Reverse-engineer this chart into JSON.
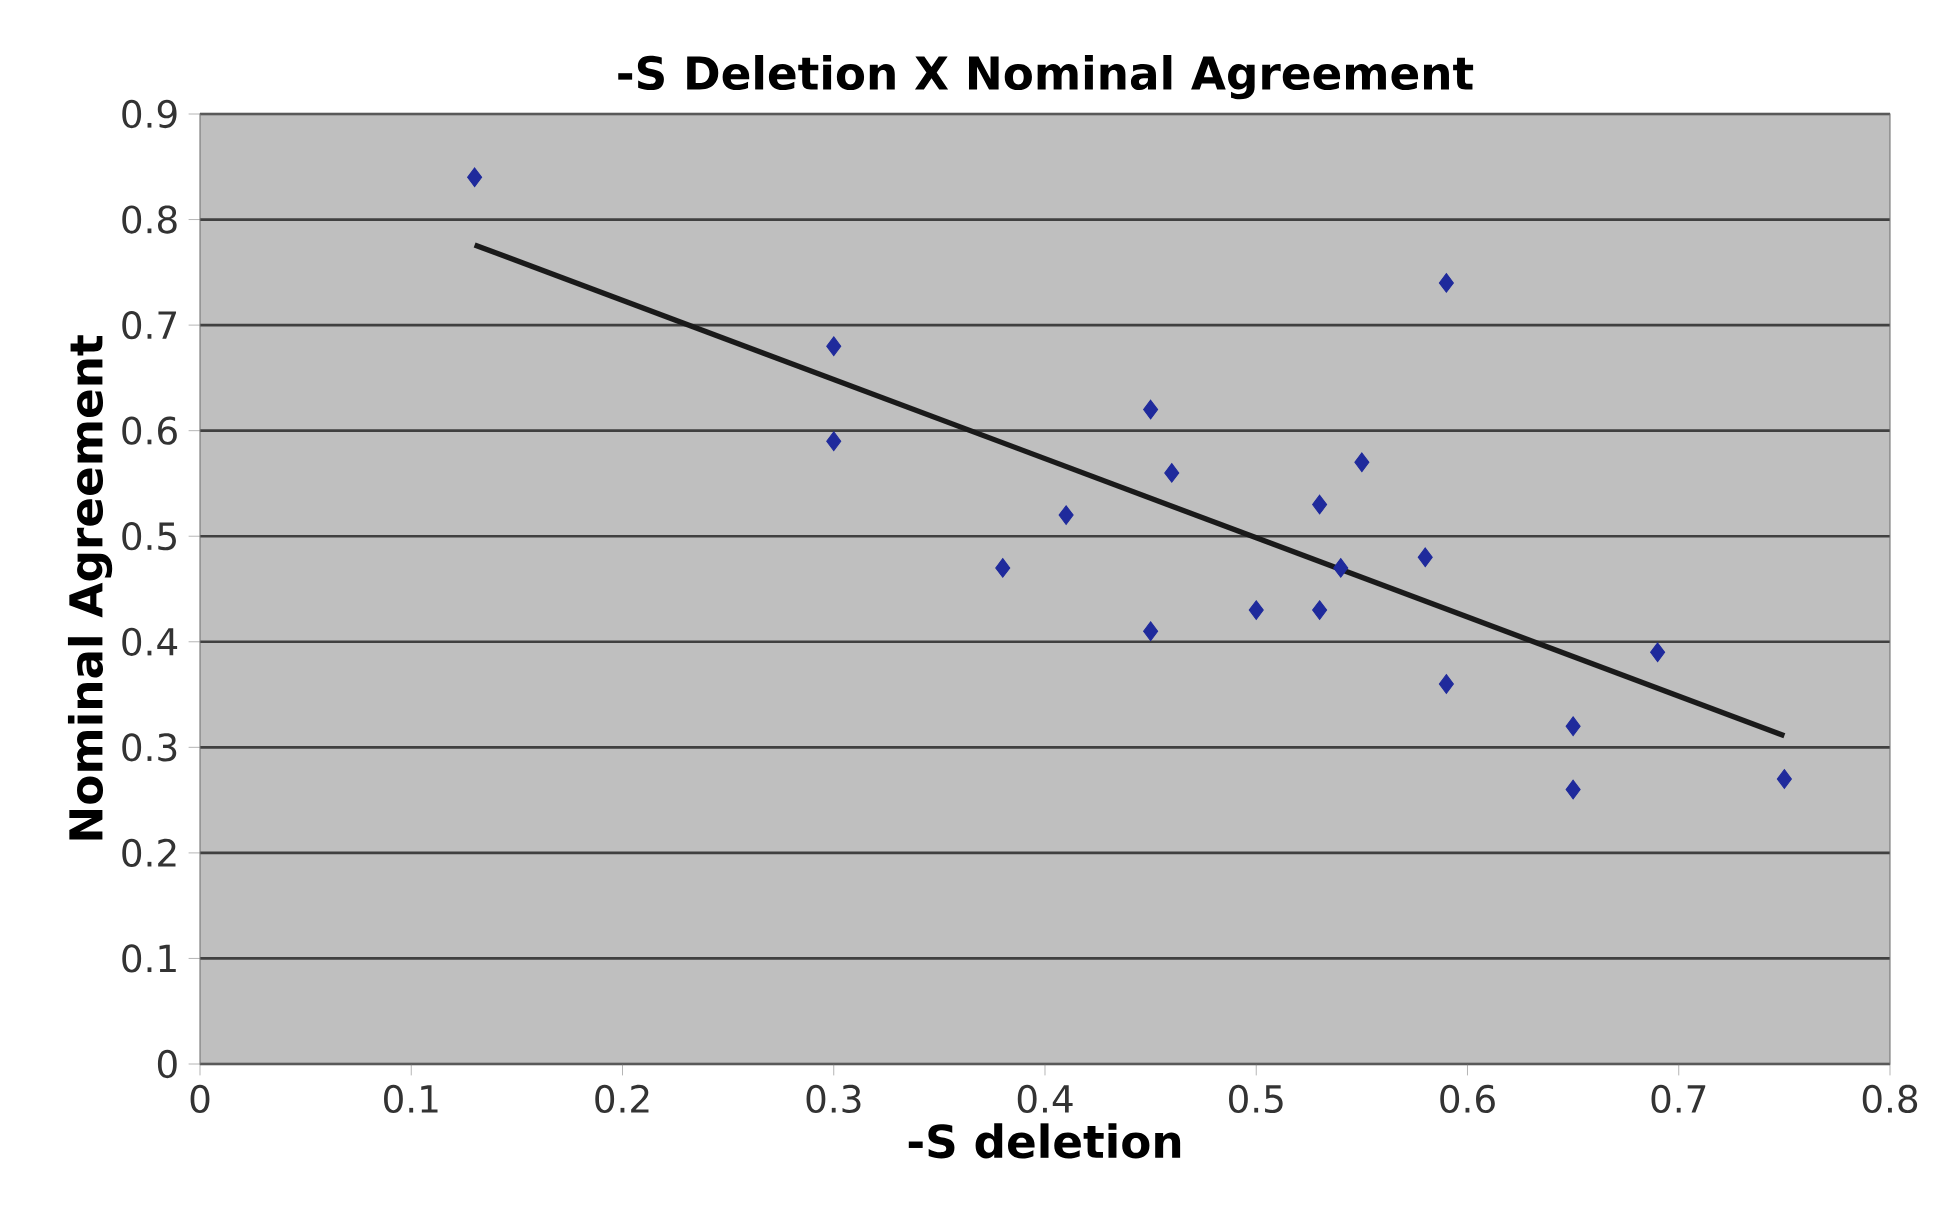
{
  "chart_data": {
    "type": "scatter",
    "title": "-S Deletion X Nominal Agreement",
    "xlabel": "-S deletion",
    "ylabel": "Nominal Agreement",
    "xlim": [
      0,
      0.8
    ],
    "xticks": [
      0,
      0.1,
      0.2,
      0.3,
      0.4,
      0.5,
      0.6,
      0.7,
      0.8
    ],
    "ylim": [
      0,
      0.9
    ],
    "yticks": [
      0,
      0.1,
      0.2,
      0.3,
      0.4,
      0.5,
      0.6,
      0.7,
      0.8,
      0.9
    ],
    "grid": "y",
    "series": [
      {
        "marker": "diamond",
        "color": "#1f2a9c",
        "x": [
          0.13,
          0.3,
          0.3,
          0.38,
          0.41,
          0.45,
          0.45,
          0.46,
          0.5,
          0.53,
          0.53,
          0.54,
          0.55,
          0.58,
          0.59,
          0.59,
          0.65,
          0.65,
          0.69,
          0.75
        ],
        "values": [
          0.84,
          0.68,
          0.59,
          0.47,
          0.52,
          0.62,
          0.41,
          0.56,
          0.43,
          0.53,
          0.43,
          0.47,
          0.57,
          0.48,
          0.74,
          0.36,
          0.32,
          0.26,
          0.39,
          0.27
        ]
      },
      {
        "type": "line",
        "marker": "none",
        "line_style": "solid",
        "color": "#1a1a1a",
        "x": [
          0.13,
          0.75
        ],
        "values": [
          0.776,
          0.311
        ]
      }
    ]
  }
}
